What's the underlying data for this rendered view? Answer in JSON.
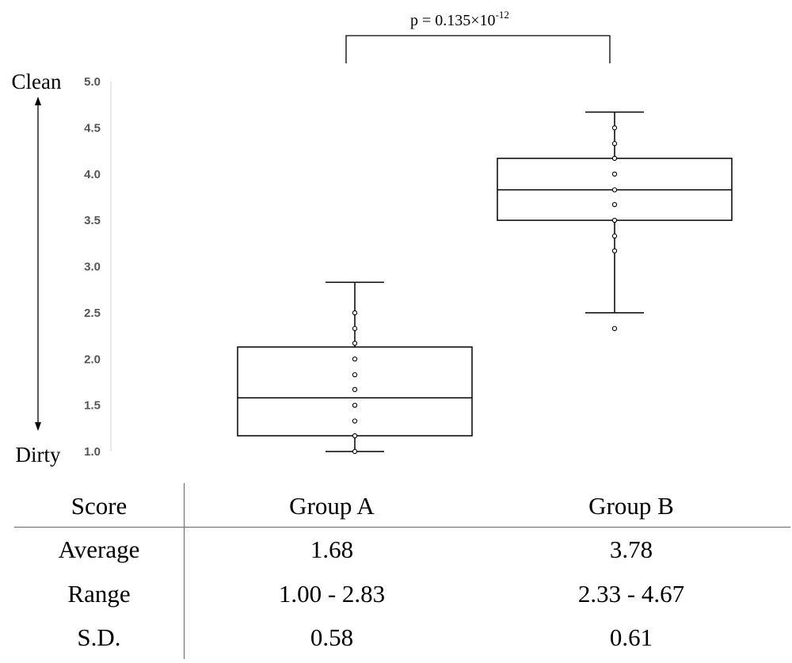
{
  "chart_data": {
    "type": "box",
    "ylim": [
      1.0,
      5.0
    ],
    "y_ticks": [
      "1.0",
      "1.5",
      "2.0",
      "2.5",
      "3.0",
      "3.5",
      "4.0",
      "4.5",
      "5.0"
    ],
    "y_top_label": "Clean",
    "y_bottom_label": "Dirty",
    "significance": {
      "base": "p = 0.135×10",
      "exponent": "-12"
    },
    "groups": [
      {
        "name": "Group A",
        "whisker_low": 1.0,
        "q1": 1.17,
        "median": 1.58,
        "q3": 2.13,
        "whisker_high": 2.83,
        "outliers": [],
        "points": [
          1.0,
          1.17,
          1.33,
          1.5,
          1.67,
          1.83,
          2.0,
          2.17,
          2.33,
          2.5
        ]
      },
      {
        "name": "Group B",
        "whisker_low": 2.5,
        "q1": 3.5,
        "median": 3.83,
        "q3": 4.17,
        "whisker_high": 4.67,
        "outliers": [
          2.33
        ],
        "points": [
          3.17,
          3.33,
          3.5,
          3.67,
          3.83,
          4.0,
          4.17,
          4.33,
          4.5
        ]
      }
    ]
  },
  "table": {
    "header": {
      "label": "Score",
      "col_a": "Group A",
      "col_b": "Group B"
    },
    "rows": [
      {
        "label": "Average",
        "a": "1.68",
        "b": "3.78"
      },
      {
        "label": "Range",
        "a": "1.00 - 2.83",
        "b": "2.33 - 4.67"
      },
      {
        "label": "S.D.",
        "a": "0.58",
        "b": "0.61"
      }
    ]
  }
}
